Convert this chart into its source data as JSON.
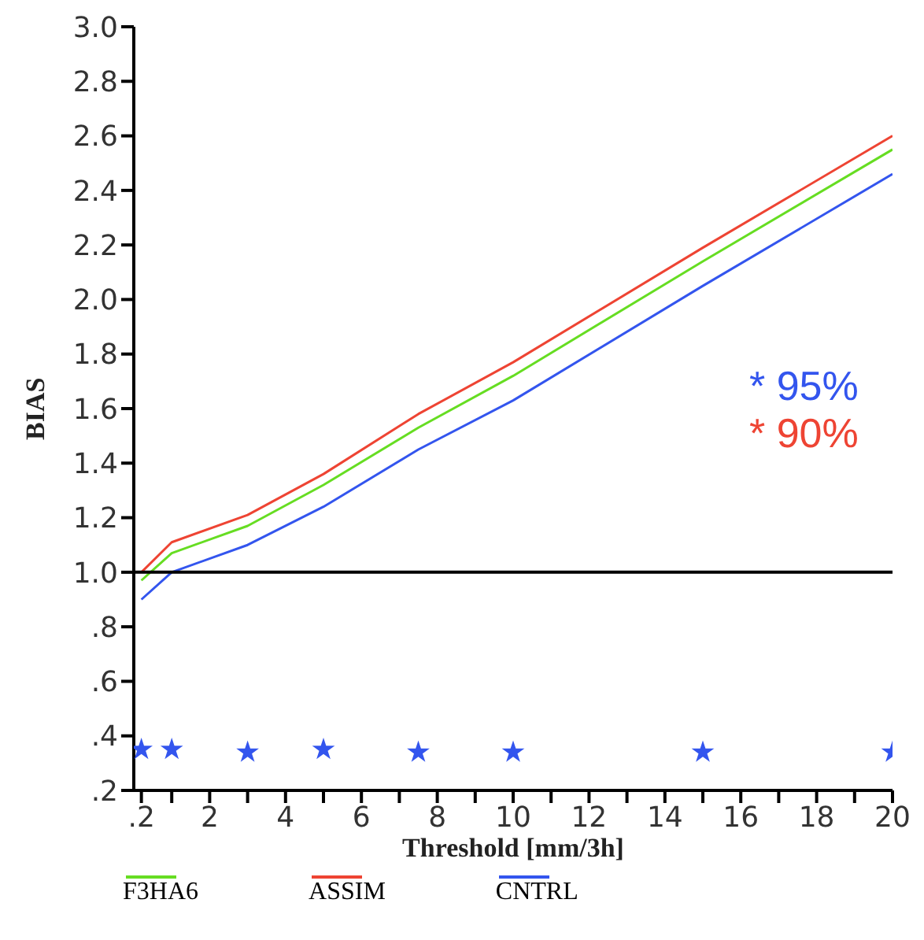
{
  "chart_data": {
    "type": "line",
    "xlabel": "Threshold [mm/3h]",
    "ylabel": "BIAS",
    "x": [
      0.2,
      1,
      3,
      5,
      7.5,
      10,
      15,
      20
    ],
    "series": [
      {
        "name": "F3HA6",
        "color": "#66dd22",
        "values": [
          0.97,
          1.07,
          1.17,
          1.32,
          1.53,
          1.72,
          2.14,
          2.55
        ]
      },
      {
        "name": "ASSIM",
        "color": "#ee4433",
        "values": [
          1.0,
          1.11,
          1.21,
          1.36,
          1.58,
          1.77,
          2.19,
          2.6
        ]
      },
      {
        "name": "CNTRL",
        "color": "#3355ee",
        "values": [
          0.9,
          1.0,
          1.1,
          1.24,
          1.45,
          1.63,
          2.05,
          2.46
        ]
      },
      {
        "type": "scatter",
        "color": "#3355ee",
        "marker": "star",
        "values": [
          0.35,
          0.35,
          0.34,
          0.35,
          0.34,
          0.34,
          0.34,
          0.34
        ]
      }
    ],
    "xlim": [
      0,
      20
    ],
    "xticks": [
      {
        "value": 0.2,
        "label": ".2"
      },
      {
        "value": 1,
        "label": null
      },
      2,
      {
        "value": 3,
        "label": null
      },
      4,
      {
        "value": 5,
        "label": null
      },
      6,
      {
        "value": 7,
        "label": null
      },
      8,
      {
        "value": 9,
        "label": null
      },
      10,
      {
        "value": 11,
        "label": null
      },
      12,
      {
        "value": 13,
        "label": null
      },
      14,
      {
        "value": 15,
        "label": null
      },
      16,
      {
        "value": 17,
        "label": null
      },
      18,
      {
        "value": 19,
        "label": null
      },
      20
    ],
    "ylim": [
      0.2,
      3.0
    ],
    "yticks": [
      {
        "value": 0.2,
        "label": ".2"
      },
      {
        "value": 0.4,
        "label": ".4"
      },
      {
        "value": 0.6,
        "label": ".6"
      },
      {
        "value": 0.8,
        "label": ".8"
      },
      {
        "value": 1.0,
        "label": "1.0"
      },
      {
        "value": 1.2,
        "label": "1.2"
      },
      {
        "value": 1.4,
        "label": "1.4"
      },
      {
        "value": 1.6,
        "label": "1.6"
      },
      {
        "value": 1.8,
        "label": "1.8"
      },
      {
        "value": 2.0,
        "label": "2.0"
      },
      {
        "value": 2.2,
        "label": "2.2"
      },
      {
        "value": 2.4,
        "label": "2.4"
      },
      {
        "value": 2.6,
        "label": "2.6"
      },
      {
        "value": 2.8,
        "label": "2.8"
      },
      {
        "value": 3.0,
        "label": "3.0"
      }
    ],
    "ref_lines": [
      {
        "axis": "y",
        "value": 1.0,
        "color": "#000000"
      }
    ],
    "annotations": [
      "* 95%",
      "* 90%"
    ],
    "marker": "none",
    "line_style": "solid",
    "grid": false,
    "legend": "bottom"
  }
}
